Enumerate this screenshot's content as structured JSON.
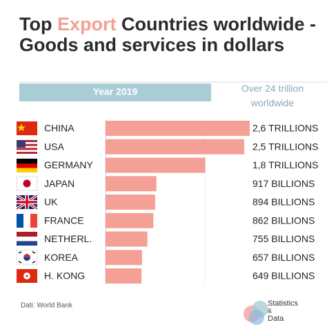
{
  "chart_data": {
    "type": "bar",
    "orientation": "horizontal",
    "title_parts": [
      "Top ",
      "Export",
      " Countries worldwide - Goods and services in dollars"
    ],
    "subtitle": "Year 2019",
    "annotation": "Over 24 trillion worldwide",
    "categories": [
      "CHINA",
      "USA",
      "GERMANY",
      "JAPAN",
      "UK",
      "FRANCE",
      "NETHERL.",
      "KOREA",
      "H. KONG"
    ],
    "values": [
      2600,
      2500,
      1800,
      917,
      894,
      862,
      755,
      657,
      649
    ],
    "value_labels": [
      "2,6 TRILLIONS",
      "2,5 TRILLIONS",
      "1,8 TRILLIONS",
      "917 BILLIONS",
      "894 BILLIONS",
      "862 BILLIONS",
      "755 BILLIONS",
      "657 BILLIONS",
      "649 BILLIONS"
    ],
    "color": "#f5a097",
    "source": "Dati: World Bank",
    "logo": [
      "Statistics",
      "&",
      "Data"
    ]
  }
}
